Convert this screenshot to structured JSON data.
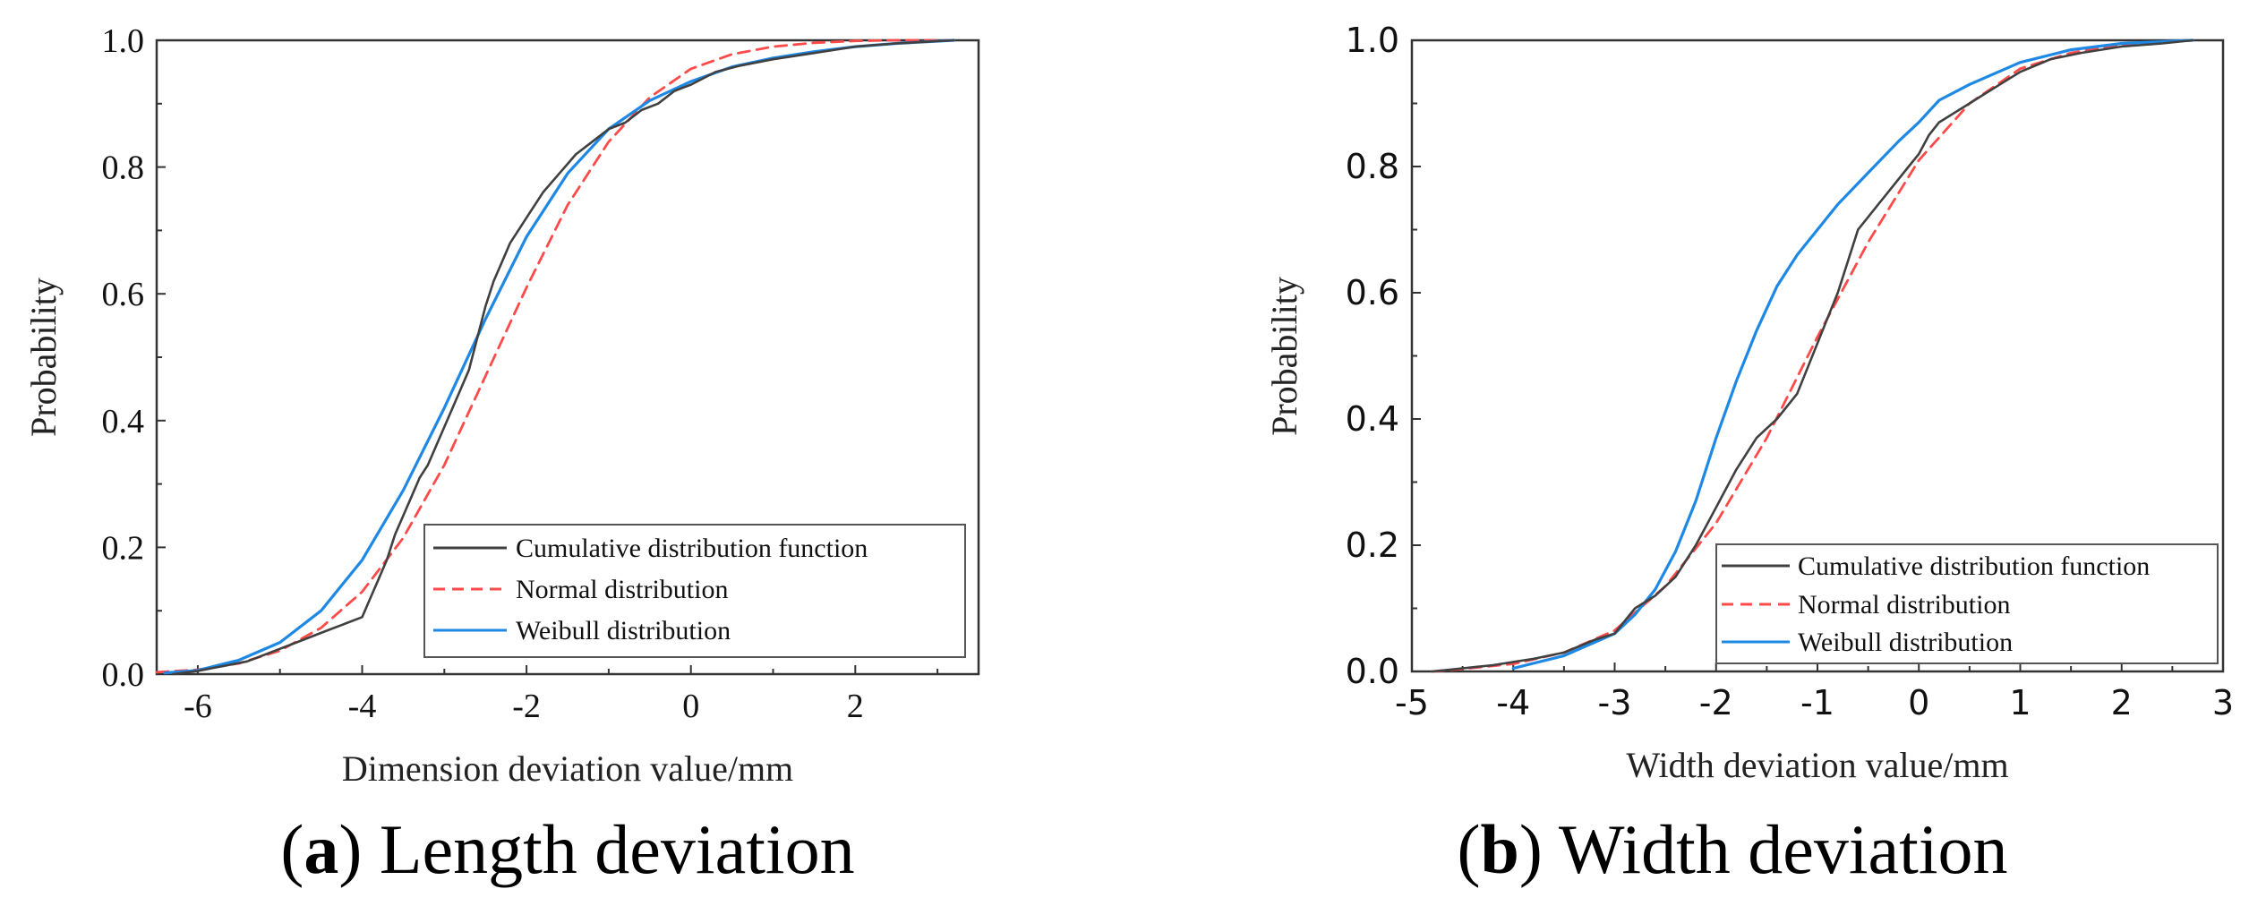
{
  "chart_data": [
    {
      "type": "line",
      "caption_letter": "a",
      "caption_text": "Length deviation",
      "title": "",
      "xlabel": "Dimension deviation value/mm",
      "ylabel": "Probability",
      "xlim": [
        -6.5,
        3.5
      ],
      "ylim": [
        0,
        1.0
      ],
      "xticks": [
        "-6",
        "-4",
        "-2",
        "0",
        "2"
      ],
      "xtick_values": [
        -6,
        -4,
        -2,
        0,
        2
      ],
      "yticks": [
        "0.0",
        "0.2",
        "0.4",
        "0.6",
        "0.8",
        "1.0"
      ],
      "ytick_values": [
        0,
        0.2,
        0.4,
        0.6,
        0.8,
        1.0
      ],
      "legend_position": "bottom-right",
      "series": [
        {
          "name": "Cumulative distribution function",
          "color": "#404040",
          "dash": "solid",
          "x": [
            -6.3,
            -6.0,
            -5.8,
            -5.6,
            -5.4,
            -5.2,
            -5.0,
            -4.8,
            -4.6,
            -4.4,
            -4.2,
            -4.0,
            -3.9,
            -3.8,
            -3.7,
            -3.6,
            -3.5,
            -3.4,
            -3.3,
            -3.2,
            -3.1,
            -3.0,
            -2.9,
            -2.8,
            -2.7,
            -2.6,
            -2.5,
            -2.4,
            -2.3,
            -2.2,
            -2.1,
            -2.0,
            -1.8,
            -1.6,
            -1.4,
            -1.2,
            -1.0,
            -0.8,
            -0.6,
            -0.4,
            -0.2,
            0.0,
            0.3,
            0.6,
            1.0,
            1.5,
            2.0,
            2.5,
            3.2
          ],
          "y": [
            0,
            0.005,
            0.01,
            0.015,
            0.02,
            0.03,
            0.04,
            0.05,
            0.06,
            0.07,
            0.08,
            0.09,
            0.12,
            0.15,
            0.18,
            0.22,
            0.25,
            0.28,
            0.31,
            0.33,
            0.36,
            0.39,
            0.42,
            0.45,
            0.48,
            0.53,
            0.58,
            0.62,
            0.65,
            0.68,
            0.7,
            0.72,
            0.76,
            0.79,
            0.82,
            0.84,
            0.86,
            0.87,
            0.89,
            0.9,
            0.92,
            0.93,
            0.95,
            0.96,
            0.97,
            0.98,
            0.99,
            0.995,
            1.0
          ]
        },
        {
          "name": "Normal distribution",
          "color": "#ff4a4a",
          "dash": "dashed",
          "x": [
            -6.5,
            -6.0,
            -5.5,
            -5.0,
            -4.5,
            -4.0,
            -3.5,
            -3.0,
            -2.5,
            -2.0,
            -1.5,
            -1.0,
            -0.5,
            0.0,
            0.5,
            1.0,
            1.5,
            2.0,
            2.5,
            3.2
          ],
          "y": [
            0.003,
            0.007,
            0.017,
            0.037,
            0.073,
            0.13,
            0.215,
            0.33,
            0.47,
            0.61,
            0.74,
            0.84,
            0.91,
            0.955,
            0.978,
            0.99,
            0.996,
            0.999,
            1.0,
            1.0
          ]
        },
        {
          "name": "Weibull distribution",
          "color": "#1e88e5",
          "dash": "solid",
          "x": [
            -6.4,
            -6.0,
            -5.5,
            -5.0,
            -4.5,
            -4.0,
            -3.5,
            -3.0,
            -2.5,
            -2.0,
            -1.5,
            -1.0,
            -0.5,
            0.0,
            0.5,
            1.0,
            1.5,
            2.0,
            2.5,
            3.2
          ],
          "y": [
            0.002,
            0.006,
            0.022,
            0.05,
            0.1,
            0.18,
            0.29,
            0.42,
            0.56,
            0.69,
            0.79,
            0.86,
            0.905,
            0.935,
            0.958,
            0.972,
            0.982,
            0.99,
            0.995,
            1.0
          ]
        }
      ]
    },
    {
      "type": "line",
      "caption_letter": "b",
      "caption_text": "Width deviation",
      "title": "",
      "xlabel": "Width deviation value/mm",
      "ylabel": "Probability",
      "xlim": [
        -5,
        3
      ],
      "ylim": [
        0,
        1.0
      ],
      "xticks": [
        "-5",
        "-4",
        "-3",
        "-2",
        "-1",
        "0",
        "1",
        "2",
        "3"
      ],
      "xtick_values": [
        -5,
        -4,
        -3,
        -2,
        -1,
        0,
        1,
        2,
        3
      ],
      "yticks": [
        "0.0",
        "0.2",
        "0.4",
        "0.6",
        "0.8",
        "1.0"
      ],
      "ytick_values": [
        0,
        0.2,
        0.4,
        0.6,
        0.8,
        1.0
      ],
      "legend_position": "bottom-right",
      "series": [
        {
          "name": "Cumulative distribution function",
          "color": "#404040",
          "dash": "solid",
          "x": [
            -4.8,
            -4.5,
            -4.2,
            -4.0,
            -3.8,
            -3.5,
            -3.2,
            -3.0,
            -2.9,
            -2.8,
            -2.6,
            -2.4,
            -2.2,
            -2.0,
            -1.8,
            -1.6,
            -1.4,
            -1.2,
            -1.0,
            -0.9,
            -0.8,
            -0.7,
            -0.6,
            -0.5,
            -0.4,
            -0.3,
            -0.2,
            -0.1,
            0.0,
            0.1,
            0.2,
            0.3,
            0.4,
            0.5,
            0.6,
            0.8,
            1.0,
            1.3,
            1.6,
            2.0,
            2.4,
            2.7
          ],
          "y": [
            0,
            0.005,
            0.01,
            0.015,
            0.02,
            0.03,
            0.05,
            0.06,
            0.08,
            0.1,
            0.12,
            0.15,
            0.2,
            0.26,
            0.32,
            0.37,
            0.4,
            0.44,
            0.52,
            0.56,
            0.6,
            0.65,
            0.7,
            0.72,
            0.74,
            0.76,
            0.78,
            0.8,
            0.82,
            0.85,
            0.87,
            0.88,
            0.89,
            0.9,
            0.91,
            0.93,
            0.95,
            0.97,
            0.98,
            0.99,
            0.995,
            1.0
          ]
        },
        {
          "name": "Normal distribution",
          "color": "#ff4a4a",
          "dash": "dashed",
          "x": [
            -4.8,
            -4.5,
            -4.0,
            -3.5,
            -3.0,
            -2.5,
            -2.0,
            -1.5,
            -1.0,
            -0.5,
            0.0,
            0.5,
            1.0,
            1.5,
            2.0,
            2.5,
            2.7
          ],
          "y": [
            0,
            0.004,
            0.012,
            0.03,
            0.065,
            0.135,
            0.235,
            0.37,
            0.53,
            0.68,
            0.81,
            0.9,
            0.955,
            0.98,
            0.993,
            0.998,
            1.0
          ]
        },
        {
          "name": "Weibull distribution",
          "color": "#1e88e5",
          "dash": "solid",
          "x": [
            -4.0,
            -3.5,
            -3.0,
            -2.8,
            -2.6,
            -2.4,
            -2.2,
            -2.0,
            -1.8,
            -1.6,
            -1.4,
            -1.2,
            -1.0,
            -0.8,
            -0.5,
            -0.2,
            0.0,
            0.2,
            0.5,
            1.0,
            1.5,
            2.0,
            2.7
          ],
          "y": [
            0.005,
            0.025,
            0.06,
            0.09,
            0.13,
            0.19,
            0.27,
            0.37,
            0.46,
            0.54,
            0.61,
            0.66,
            0.7,
            0.74,
            0.79,
            0.84,
            0.87,
            0.905,
            0.93,
            0.965,
            0.985,
            0.995,
            1.0
          ]
        }
      ]
    }
  ]
}
